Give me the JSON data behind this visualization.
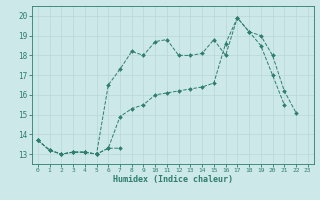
{
  "xlabel": "Humidex (Indice chaleur)",
  "bg_color": "#cce8e8",
  "grid_color": "#b8d8d8",
  "line_color": "#2e7d6e",
  "xlim": [
    -0.5,
    23.5
  ],
  "ylim": [
    12.5,
    20.5
  ],
  "yticks": [
    13,
    14,
    15,
    16,
    17,
    18,
    19,
    20
  ],
  "xticks": [
    0,
    1,
    2,
    3,
    4,
    5,
    6,
    7,
    8,
    9,
    10,
    11,
    12,
    13,
    14,
    15,
    16,
    17,
    18,
    19,
    20,
    21,
    22,
    23
  ],
  "line1_x": [
    0,
    1,
    2,
    3,
    4,
    5,
    6,
    7
  ],
  "line1_y": [
    13.7,
    13.2,
    13.0,
    13.1,
    13.1,
    13.0,
    13.3,
    13.3
  ],
  "line2_x": [
    0,
    1,
    2,
    3,
    4,
    5,
    6,
    7,
    8,
    9,
    10,
    11,
    12,
    13,
    14,
    15,
    16,
    17,
    18,
    19,
    20,
    21,
    22
  ],
  "line2_y": [
    13.7,
    13.2,
    13.0,
    13.1,
    13.1,
    13.0,
    16.5,
    17.3,
    18.2,
    18.0,
    18.7,
    18.8,
    18.0,
    18.0,
    18.1,
    18.8,
    18.0,
    19.9,
    19.2,
    19.0,
    18.0,
    16.2,
    15.1
  ],
  "line3_x": [
    0,
    1,
    2,
    3,
    4,
    5,
    6,
    7,
    8,
    9,
    10,
    11,
    12,
    13,
    14,
    15,
    16,
    17,
    18,
    19,
    20,
    21
  ],
  "line3_y": [
    13.7,
    13.2,
    13.0,
    13.1,
    13.1,
    13.0,
    13.3,
    14.9,
    15.3,
    15.5,
    16.0,
    16.1,
    16.2,
    16.3,
    16.4,
    16.6,
    18.6,
    19.9,
    19.2,
    18.5,
    17.0,
    15.5
  ]
}
